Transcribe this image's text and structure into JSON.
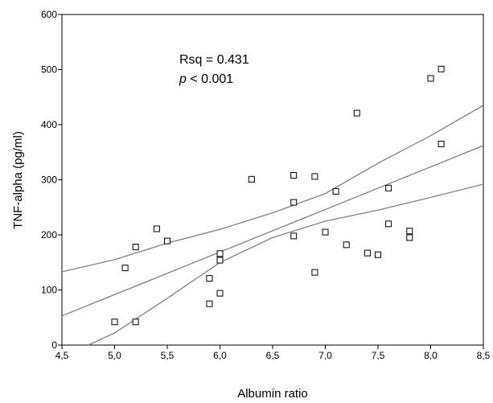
{
  "chart_data": {
    "type": "scatter",
    "xlabel": "Albumin ratio",
    "ylabel": "TNF-alpha (pg/ml)",
    "xlim": [
      4.5,
      8.5
    ],
    "ylim": [
      0,
      600
    ],
    "x_ticks": [
      4.5,
      5.0,
      5.5,
      6.0,
      6.5,
      7.0,
      7.5,
      8.0,
      8.5
    ],
    "x_tick_labels": [
      "4,5",
      "5,0",
      "5,5",
      "6,0",
      "6,5",
      "7,0",
      "7,5",
      "8,0",
      "8,5"
    ],
    "y_ticks": [
      0,
      100,
      200,
      300,
      400,
      500,
      600
    ],
    "y_tick_labels": [
      "0",
      "100",
      "200",
      "300",
      "400",
      "500",
      "600"
    ],
    "grid": false,
    "legend": "none",
    "annotation_rsq": "Rsq = 0.431",
    "annotation_p_italic": "p",
    "annotation_p_rest": " < 0.001",
    "marker": "open-square",
    "line_color": "#808080",
    "points": [
      {
        "x": 5.0,
        "y": 42
      },
      {
        "x": 5.1,
        "y": 140
      },
      {
        "x": 5.2,
        "y": 42
      },
      {
        "x": 5.2,
        "y": 178
      },
      {
        "x": 5.4,
        "y": 211
      },
      {
        "x": 5.5,
        "y": 189
      },
      {
        "x": 5.9,
        "y": 75
      },
      {
        "x": 5.9,
        "y": 121
      },
      {
        "x": 6.0,
        "y": 94
      },
      {
        "x": 6.0,
        "y": 154
      },
      {
        "x": 6.0,
        "y": 166
      },
      {
        "x": 6.3,
        "y": 301
      },
      {
        "x": 6.7,
        "y": 198
      },
      {
        "x": 6.7,
        "y": 259
      },
      {
        "x": 6.7,
        "y": 308
      },
      {
        "x": 6.9,
        "y": 132
      },
      {
        "x": 6.9,
        "y": 306
      },
      {
        "x": 7.0,
        "y": 205
      },
      {
        "x": 7.1,
        "y": 279
      },
      {
        "x": 7.2,
        "y": 182
      },
      {
        "x": 7.3,
        "y": 421
      },
      {
        "x": 7.4,
        "y": 167
      },
      {
        "x": 7.5,
        "y": 164
      },
      {
        "x": 7.6,
        "y": 220
      },
      {
        "x": 7.6,
        "y": 285
      },
      {
        "x": 7.8,
        "y": 195
      },
      {
        "x": 7.8,
        "y": 207
      },
      {
        "x": 8.0,
        "y": 484
      },
      {
        "x": 8.1,
        "y": 365
      },
      {
        "x": 8.1,
        "y": 501
      }
    ],
    "fit_line": {
      "x": [
        4.5,
        8.5
      ],
      "y": [
        53,
        362
      ]
    },
    "ci_upper": {
      "x": [
        4.5,
        5.0,
        5.5,
        6.0,
        6.5,
        7.0,
        7.5,
        8.0,
        8.5
      ],
      "y": [
        133,
        155,
        185,
        210,
        240,
        275,
        330,
        380,
        435
      ]
    },
    "ci_lower": {
      "x": [
        4.75,
        5.0,
        5.5,
        6.0,
        6.5,
        7.0,
        7.5,
        8.0,
        8.5
      ],
      "y": [
        0,
        22,
        85,
        150,
        195,
        225,
        245,
        268,
        292
      ]
    }
  }
}
